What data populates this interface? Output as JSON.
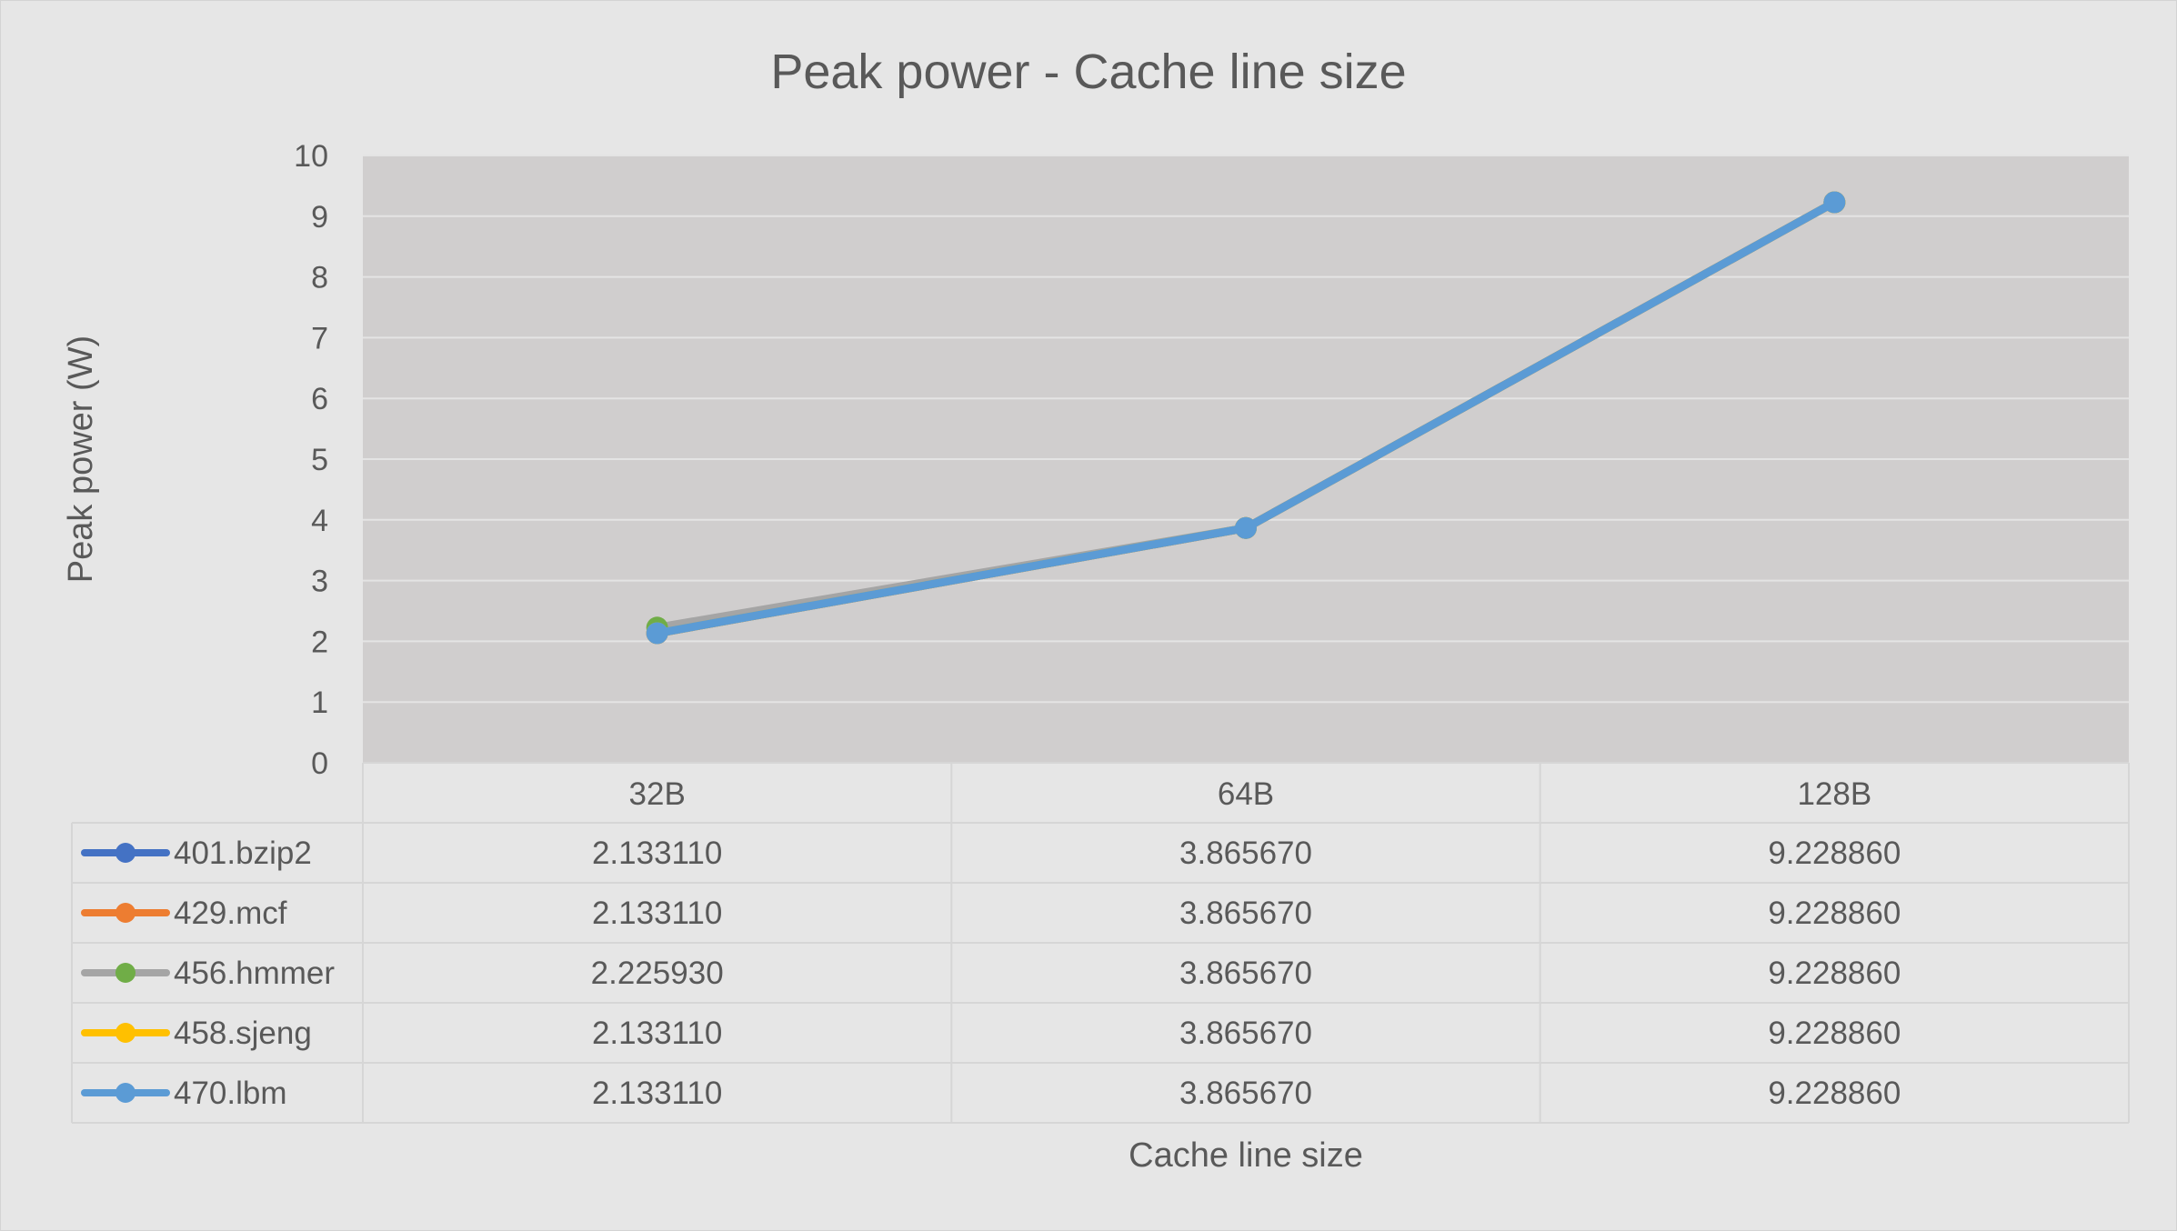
{
  "chart_data": {
    "type": "line",
    "title": "Peak power - Cache line size",
    "xlabel": "Cache line size",
    "ylabel": "Peak power (W)",
    "categories": [
      "32B",
      "64B",
      "128B"
    ],
    "ylim": [
      0,
      10
    ],
    "yticks": [
      0,
      1,
      2,
      3,
      4,
      5,
      6,
      7,
      8,
      9,
      10
    ],
    "grid": true,
    "legend": "data-table",
    "series": [
      {
        "name": "401.bzip2",
        "color": "#4472c4",
        "values": [
          2.13311,
          3.86567,
          9.22886
        ],
        "labels": [
          "2.133110",
          "3.865670",
          "9.228860"
        ]
      },
      {
        "name": "429.mcf",
        "color": "#ed7d31",
        "values": [
          2.13311,
          3.86567,
          9.22886
        ],
        "labels": [
          "2.133110",
          "3.865670",
          "9.228860"
        ]
      },
      {
        "name": "456.hmmer",
        "color": "#a5a5a5",
        "marker_color": "#70ad47",
        "values": [
          2.22593,
          3.86567,
          9.22886
        ],
        "labels": [
          "2.225930",
          "3.865670",
          "9.228860"
        ]
      },
      {
        "name": "458.sjeng",
        "color": "#ffc000",
        "values": [
          2.13311,
          3.86567,
          9.22886
        ],
        "labels": [
          "2.133110",
          "3.865670",
          "9.228860"
        ]
      },
      {
        "name": "470.lbm",
        "color": "#5b9bd5",
        "values": [
          2.13311,
          3.86567,
          9.22886
        ],
        "labels": [
          "2.133110",
          "3.865670",
          "9.228860"
        ]
      }
    ]
  }
}
